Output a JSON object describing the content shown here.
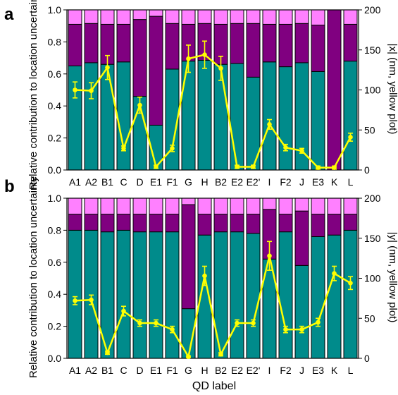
{
  "colors": {
    "teal": "#008b8b",
    "purple": "#800080",
    "pink": "#ff80ff",
    "yellow": "#ffff00",
    "background": "#ffffff"
  },
  "figure": {
    "xlabel": "QD label",
    "categories": [
      "A1",
      "A2",
      "B1",
      "C",
      "D",
      "E1",
      "F1",
      "G",
      "H",
      "B2",
      "E2",
      "E2'",
      "I",
      "F2",
      "J",
      "E3",
      "K",
      "L"
    ]
  },
  "chart_data": [
    {
      "panel_label": "a",
      "type": "bar",
      "stacked": true,
      "categories": [
        "A1",
        "A2",
        "B1",
        "C",
        "D",
        "E1",
        "F1",
        "G",
        "H",
        "B2",
        "E2",
        "E2'",
        "I",
        "F2",
        "J",
        "E3",
        "K",
        "L"
      ],
      "ylabel": "Relative contribution to location uncertainty",
      "ylim": [
        0,
        1.0
      ],
      "yticks": [
        "0.0",
        "0.2",
        "0.4",
        "0.6",
        "0.8",
        "1.0"
      ],
      "series": [
        {
          "color": "#008b8b",
          "values": [
            0.65,
            0.67,
            0.66,
            0.675,
            0.46,
            0.28,
            0.63,
            0.68,
            0.685,
            0.66,
            0.665,
            0.58,
            0.675,
            0.645,
            0.67,
            0.615,
            0.0,
            0.68
          ]
        },
        {
          "color": "#800080",
          "values": [
            0.26,
            0.245,
            0.25,
            0.235,
            0.48,
            0.68,
            0.285,
            0.23,
            0.23,
            0.25,
            0.25,
            0.335,
            0.235,
            0.265,
            0.245,
            0.29,
            1.0,
            0.23
          ]
        },
        {
          "color": "#ff80ff",
          "values": [
            0.09,
            0.085,
            0.09,
            0.09,
            0.06,
            0.04,
            0.085,
            0.09,
            0.085,
            0.09,
            0.085,
            0.085,
            0.09,
            0.09,
            0.085,
            0.095,
            0.0,
            0.09
          ]
        }
      ],
      "y2label": "|x| (nm, yellow plot)",
      "y2lim": [
        0,
        200
      ],
      "y2ticks": [
        "0",
        "50",
        "100",
        "150",
        "200"
      ],
      "line": {
        "color": "#ffff00",
        "values": [
          100,
          99,
          128,
          27,
          81,
          4,
          27,
          139,
          144,
          127,
          4,
          4,
          57,
          28,
          24,
          3,
          3,
          41
        ],
        "errors": [
          10,
          10,
          15,
          3,
          10,
          2,
          4,
          17,
          17,
          15,
          2,
          2,
          6,
          4,
          3,
          2,
          2,
          5
        ]
      }
    },
    {
      "panel_label": "b",
      "type": "bar",
      "stacked": true,
      "categories": [
        "A1",
        "A2",
        "B1",
        "C",
        "D",
        "E1",
        "F1",
        "G",
        "H",
        "B2",
        "E2",
        "E2'",
        "I",
        "F2",
        "J",
        "E3",
        "K",
        "L"
      ],
      "ylabel": "Relative contribution to location uncertainty",
      "ylim": [
        0,
        1.0
      ],
      "yticks": [
        "0.0",
        "0.2",
        "0.4",
        "0.6",
        "0.8",
        "1.0"
      ],
      "series": [
        {
          "color": "#008b8b",
          "values": [
            0.8,
            0.8,
            0.79,
            0.8,
            0.79,
            0.79,
            0.79,
            0.31,
            0.77,
            0.79,
            0.79,
            0.78,
            0.62,
            0.79,
            0.58,
            0.76,
            0.77,
            0.8
          ]
        },
        {
          "color": "#800080",
          "values": [
            0.1,
            0.1,
            0.11,
            0.1,
            0.11,
            0.11,
            0.11,
            0.65,
            0.13,
            0.11,
            0.11,
            0.12,
            0.31,
            0.11,
            0.34,
            0.14,
            0.13,
            0.1
          ]
        },
        {
          "color": "#ff80ff",
          "values": [
            0.1,
            0.1,
            0.1,
            0.1,
            0.1,
            0.1,
            0.1,
            0.04,
            0.1,
            0.1,
            0.1,
            0.1,
            0.07,
            0.1,
            0.08,
            0.1,
            0.1,
            0.1
          ]
        }
      ],
      "y2label": "|y| (nm, yellow plot)",
      "y2lim": [
        0,
        200
      ],
      "y2ticks": [
        "0",
        "50",
        "100",
        "150",
        "200"
      ],
      "line": {
        "color": "#ffff00",
        "values": [
          72,
          73,
          7,
          59,
          44,
          44,
          36,
          2,
          103,
          5,
          44,
          44,
          128,
          36,
          36,
          45,
          106,
          94
        ],
        "errors": [
          5,
          6,
          2,
          6,
          4,
          4,
          4,
          1,
          12,
          2,
          4,
          4,
          18,
          4,
          4,
          5,
          9,
          8
        ]
      }
    }
  ]
}
